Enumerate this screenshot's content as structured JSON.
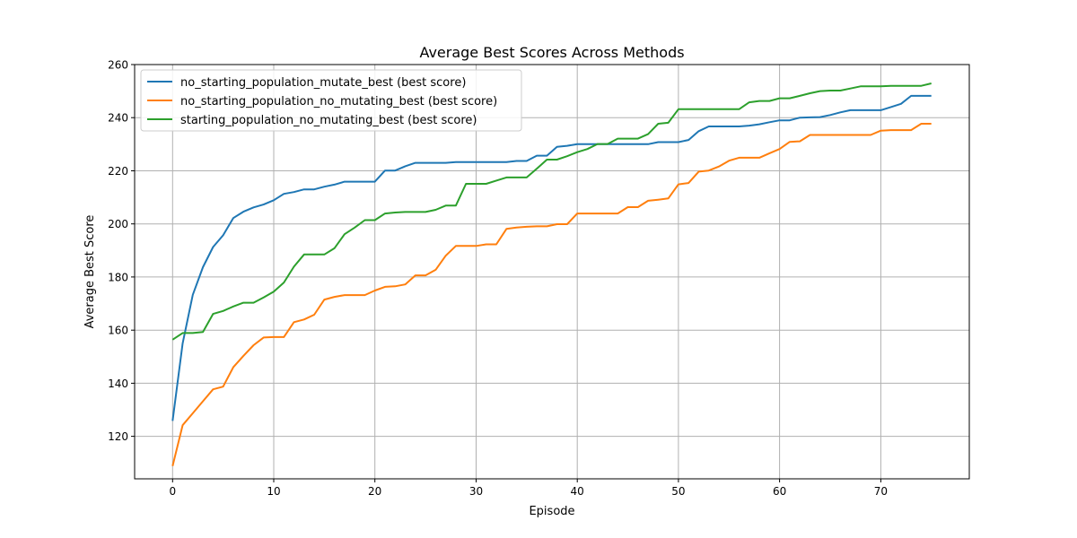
{
  "chart_data": {
    "type": "line",
    "title": "Average Best Scores Across Methods",
    "xlabel": "Episode",
    "ylabel": "Average Best Score",
    "xlim": [
      -3.75,
      78.75
    ],
    "ylim": [
      104,
      260
    ],
    "xticks": [
      0,
      10,
      20,
      30,
      40,
      50,
      60,
      70
    ],
    "yticks": [
      120,
      140,
      160,
      180,
      200,
      220,
      240,
      260
    ],
    "grid": true,
    "legend_position": "top-left",
    "x": [
      0,
      1,
      2,
      3,
      4,
      5,
      6,
      7,
      8,
      9,
      10,
      11,
      12,
      13,
      14,
      15,
      16,
      17,
      18,
      19,
      20,
      21,
      22,
      23,
      24,
      25,
      26,
      27,
      28,
      29,
      30,
      31,
      32,
      33,
      34,
      35,
      36,
      37,
      38,
      39,
      40,
      41,
      42,
      43,
      44,
      45,
      46,
      47,
      48,
      49,
      50,
      51,
      52,
      53,
      54,
      55,
      56,
      57,
      58,
      59,
      60,
      61,
      62,
      63,
      64,
      65,
      66,
      67,
      68,
      69,
      70,
      71,
      72,
      73,
      74,
      75
    ],
    "series": [
      {
        "name": "no_starting_population_mutate_best (best score)",
        "color": "#1f77b4",
        "values": [
          125.8,
          155,
          173.3,
          183.7,
          191.3,
          195.7,
          202.2,
          204.6,
          206.2,
          207.3,
          208.9,
          211.3,
          212,
          213,
          213,
          214,
          214.8,
          215.9,
          215.9,
          215.9,
          215.9,
          220.1,
          220.1,
          221.7,
          223,
          223,
          223,
          223,
          223.3,
          223.3,
          223.3,
          223.3,
          223.3,
          223.3,
          223.7,
          223.7,
          225.7,
          225.7,
          229,
          229.4,
          230,
          230,
          230,
          230,
          230,
          230,
          230,
          230,
          230.8,
          230.8,
          230.8,
          231.6,
          234.9,
          236.7,
          236.7,
          236.7,
          236.7,
          237,
          237.5,
          238.3,
          239,
          239,
          240,
          240.1,
          240.2,
          241,
          242,
          242.8,
          242.8,
          242.8,
          242.8,
          244,
          245.2,
          248.2,
          248.2,
          248.2
        ]
      },
      {
        "name": "no_starting_population_no_mutating_best (best score)",
        "color": "#ff7f0e",
        "values": [
          108.8,
          124.2,
          128.7,
          133.2,
          137.7,
          138.7,
          146,
          150.3,
          154.3,
          157.2,
          157.4,
          157.4,
          163,
          164,
          165.8,
          171.5,
          172.5,
          173.2,
          173.2,
          173.2,
          174.9,
          176.3,
          176.5,
          177.2,
          180.6,
          180.6,
          182.7,
          188,
          191.7,
          191.7,
          191.7,
          192.3,
          192.3,
          198.1,
          198.6,
          198.9,
          199.1,
          199.1,
          199.9,
          199.9,
          203.9,
          203.9,
          203.9,
          203.9,
          203.9,
          206.3,
          206.3,
          208.7,
          209.1,
          209.6,
          214.9,
          215.4,
          219.7,
          220.1,
          221.6,
          223.8,
          224.9,
          224.9,
          224.9,
          226.6,
          228.2,
          230.9,
          231.1,
          233.5,
          233.5,
          233.5,
          233.5,
          233.5,
          233.5,
          233.5,
          235.1,
          235.3,
          235.3,
          235.3,
          237.7,
          237.7
        ]
      },
      {
        "name": "starting_population_no_mutating_best (best score)",
        "color": "#2ca02c",
        "values": [
          156.4,
          158.9,
          158.9,
          159.3,
          166.1,
          167.2,
          168.9,
          170.3,
          170.3,
          172.3,
          174.5,
          177.9,
          183.9,
          188.5,
          188.5,
          188.5,
          190.8,
          196.1,
          198.6,
          201.4,
          201.4,
          203.9,
          204.3,
          204.5,
          204.5,
          204.5,
          205.3,
          206.9,
          206.9,
          215.1,
          215.1,
          215.1,
          216.3,
          217.5,
          217.5,
          217.5,
          220.8,
          224.2,
          224.2,
          225.5,
          227,
          228.2,
          230.1,
          230.1,
          232.1,
          232.1,
          232.1,
          233.8,
          237.7,
          238.1,
          243.2,
          243.2,
          243.2,
          243.2,
          243.2,
          243.2,
          243.2,
          245.8,
          246.3,
          246.3,
          247.3,
          247.3,
          248.2,
          249.2,
          250,
          250.2,
          250.2,
          251,
          251.8,
          251.8,
          251.8,
          252,
          252,
          252,
          252,
          252.9
        ]
      }
    ]
  }
}
